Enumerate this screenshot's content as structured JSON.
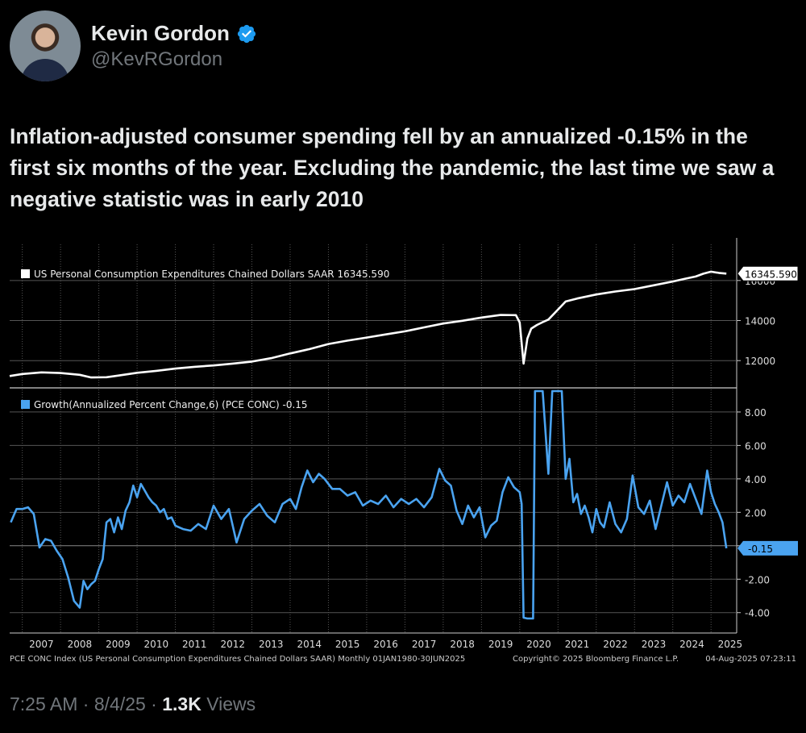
{
  "author": {
    "name": "Kevin Gordon",
    "handle": "@KevRGordon"
  },
  "tweet_text": "Inflation-adjusted consumer spending fell by an annualized -0.15% in the first six months of the year. Excluding the pandemic, the last time we saw a negative statistic was in early 2010",
  "meta": {
    "time": "7:25 AM",
    "sep1": " · ",
    "date": "8/4/25",
    "sep2": " · ",
    "views": "1.3K",
    "views_label": " Views"
  },
  "chart_data": [
    {
      "type": "line",
      "legend": "US Personal Consumption Expenditures Chained Dollars SAAR 16345.590",
      "last_value_label": "16345.590",
      "yticks": [
        12000,
        14000,
        16000
      ],
      "ylim": [
        10800,
        17000
      ],
      "color": "#ffffff",
      "x": [
        2006.67,
        2007.0,
        2007.5,
        2008.0,
        2008.5,
        2008.8,
        2009.2,
        2009.5,
        2010.0,
        2010.5,
        2011.0,
        2011.5,
        2012.0,
        2012.5,
        2013.0,
        2013.5,
        2014.0,
        2014.5,
        2015.0,
        2015.5,
        2016.0,
        2016.5,
        2017.0,
        2017.5,
        2018.0,
        2018.5,
        2019.0,
        2019.5,
        2019.9,
        2020.0,
        2020.1,
        2020.2,
        2020.3,
        2020.45,
        2020.6,
        2020.75,
        2021.0,
        2021.2,
        2021.5,
        2022.0,
        2022.5,
        2023.0,
        2023.5,
        2024.0,
        2024.3,
        2024.6,
        2024.8,
        2025.0,
        2025.2,
        2025.4
      ],
      "y": [
        11230,
        11330,
        11410,
        11380,
        11290,
        11160,
        11170,
        11250,
        11390,
        11490,
        11600,
        11690,
        11760,
        11850,
        11950,
        12120,
        12360,
        12570,
        12830,
        13000,
        13150,
        13310,
        13460,
        13660,
        13850,
        13990,
        14150,
        14280,
        14270,
        13900,
        11850,
        13100,
        13600,
        13780,
        13920,
        14050,
        14550,
        14950,
        15100,
        15300,
        15450,
        15570,
        15760,
        15950,
        16080,
        16200,
        16340,
        16440,
        16380,
        16345.59
      ]
    },
    {
      "type": "line",
      "legend": "Growth(Annualized Percent Change,6) (PCE CONC) -0.15",
      "last_value_label": "-0.15",
      "yticks": [
        -4.0,
        -2.0,
        0,
        2.0,
        4.0,
        6.0,
        8.0
      ],
      "ytick_labels": [
        "-4.00",
        "-2.00",
        "0",
        "2.00",
        "4.00",
        "6.00",
        "8.00"
      ],
      "ylim": [
        -4.35,
        9.25
      ],
      "color": "#4aa3f0",
      "x": [
        2006.7,
        2006.85,
        2007.0,
        2007.15,
        2007.3,
        2007.45,
        2007.6,
        2007.75,
        2007.9,
        2008.05,
        2008.2,
        2008.35,
        2008.5,
        2008.6,
        2008.7,
        2008.8,
        2008.9,
        2009.0,
        2009.1,
        2009.2,
        2009.3,
        2009.4,
        2009.5,
        2009.6,
        2009.7,
        2009.8,
        2009.9,
        2010.0,
        2010.1,
        2010.2,
        2010.3,
        2010.4,
        2010.5,
        2010.6,
        2010.7,
        2010.8,
        2010.9,
        2011.0,
        2011.2,
        2011.4,
        2011.6,
        2011.8,
        2012.0,
        2012.2,
        2012.4,
        2012.6,
        2012.8,
        2013.0,
        2013.2,
        2013.4,
        2013.6,
        2013.8,
        2014.0,
        2014.15,
        2014.3,
        2014.45,
        2014.6,
        2014.75,
        2014.9,
        2015.1,
        2015.3,
        2015.5,
        2015.7,
        2015.9,
        2016.1,
        2016.3,
        2016.5,
        2016.7,
        2016.9,
        2017.1,
        2017.3,
        2017.5,
        2017.7,
        2017.9,
        2018.05,
        2018.2,
        2018.35,
        2018.5,
        2018.65,
        2018.8,
        2018.95,
        2019.1,
        2019.25,
        2019.4,
        2019.55,
        2019.7,
        2019.85,
        2020.0,
        2020.05,
        2020.1,
        2020.2,
        2020.25,
        2020.35,
        2020.4,
        2020.5,
        2020.6,
        2020.75,
        2020.85,
        2020.95,
        2021.05,
        2021.1,
        2021.2,
        2021.3,
        2021.4,
        2021.5,
        2021.6,
        2021.7,
        2021.8,
        2021.9,
        2022.0,
        2022.1,
        2022.2,
        2022.35,
        2022.5,
        2022.65,
        2022.8,
        2022.95,
        2023.1,
        2023.25,
        2023.4,
        2023.55,
        2023.7,
        2023.85,
        2024.0,
        2024.15,
        2024.3,
        2024.45,
        2024.6,
        2024.75,
        2024.9,
        2025.0,
        2025.1,
        2025.2,
        2025.3,
        2025.4
      ],
      "y": [
        1.4,
        2.2,
        2.2,
        2.3,
        1.9,
        -0.1,
        0.4,
        0.3,
        -0.3,
        -0.8,
        -1.9,
        -3.3,
        -3.7,
        -2.1,
        -2.6,
        -2.3,
        -2.1,
        -1.4,
        -0.8,
        1.4,
        1.6,
        0.8,
        1.7,
        1.0,
        2.1,
        2.6,
        3.6,
        2.9,
        3.7,
        3.3,
        2.9,
        2.6,
        2.4,
        2.0,
        2.2,
        1.6,
        1.7,
        1.2,
        1.0,
        0.9,
        1.3,
        1.0,
        2.4,
        1.6,
        2.2,
        0.2,
        1.6,
        2.1,
        2.5,
        1.8,
        1.4,
        2.5,
        2.8,
        2.2,
        3.5,
        4.5,
        3.8,
        4.3,
        4.0,
        3.4,
        3.4,
        3.0,
        3.2,
        2.4,
        2.7,
        2.5,
        3.0,
        2.3,
        2.8,
        2.5,
        2.8,
        2.3,
        2.9,
        4.6,
        3.9,
        3.6,
        2.1,
        1.3,
        2.4,
        1.7,
        2.3,
        0.5,
        1.2,
        1.5,
        3.2,
        4.1,
        3.5,
        3.2,
        2.5,
        -4.3,
        -4.35,
        -4.35,
        -4.35,
        9.25,
        9.25,
        9.25,
        4.3,
        9.25,
        9.25,
        9.25,
        9.25,
        4.0,
        5.2,
        2.6,
        3.1,
        1.9,
        2.4,
        1.7,
        0.8,
        2.2,
        1.4,
        1.1,
        2.6,
        1.3,
        0.8,
        1.6,
        4.2,
        2.3,
        1.9,
        2.7,
        1.0,
        2.4,
        3.8,
        2.4,
        3.0,
        2.6,
        3.7,
        2.8,
        1.9,
        4.5,
        3.2,
        2.5,
        2.0,
        1.4,
        -0.15
      ]
    }
  ],
  "x_axis": {
    "years": [
      "2007",
      "2008",
      "2009",
      "2010",
      "2011",
      "2012",
      "2013",
      "2014",
      "2015",
      "2016",
      "2017",
      "2018",
      "2019",
      "2020",
      "2021",
      "2022",
      "2023",
      "2024",
      "2025"
    ]
  },
  "footer": {
    "left": "PCE CONC Index (US Personal Consumption Expenditures Chained Dollars SAAR)  Monthly 01JAN1980-30JUN2025",
    "middle": "Copyright© 2025 Bloomberg Finance L.P.",
    "right": "04-Aug-2025 07:23:11"
  },
  "colors": {
    "accent": "#4aa3f0",
    "verified": "#1d9bf0",
    "muted": "#71767b"
  }
}
